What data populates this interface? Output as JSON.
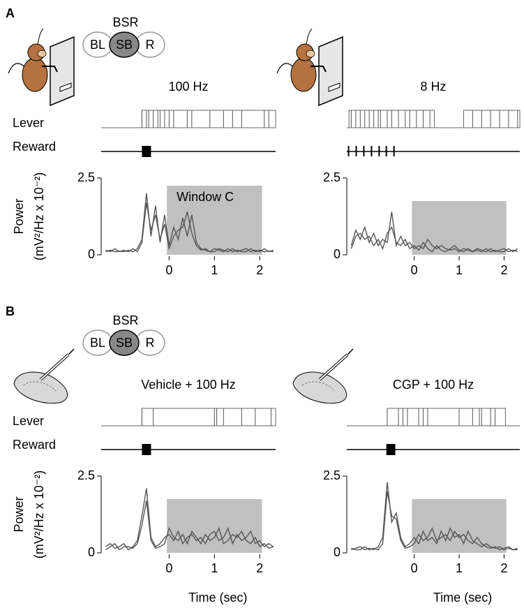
{
  "figure": {
    "panels": [
      {
        "label": "A",
        "bsr": "BSR",
        "schedule": [
          "BL",
          "SB",
          "R"
        ]
      },
      {
        "label": "B",
        "bsr": "BSR",
        "schedule": [
          "BL",
          "SB",
          "R"
        ]
      }
    ]
  },
  "chart_data": [
    {
      "type": "line",
      "title": "100 Hz",
      "lever_label": "Lever",
      "reward_label": "Reward",
      "ylabel": [
        "Power",
        "(mV²/Hz x 10⁻²)"
      ],
      "xlim": [
        -1.5,
        2.35
      ],
      "xticks": [
        0,
        1,
        2
      ],
      "ylim": [
        0,
        2.5
      ],
      "yticks": [
        0,
        2.5
      ],
      "lever": {
        "up": [
          [
            -0.6,
            2.35
          ]
        ],
        "presses": [
          -0.6,
          -0.5,
          -0.45,
          -0.35,
          -0.25,
          -0.2,
          -0.1,
          0.0,
          0.1,
          0.4,
          0.5,
          0.9,
          1.2,
          1.4,
          1.6,
          2.1,
          2.2
        ]
      },
      "reward_boxes": [
        [
          -0.6,
          -0.4
        ]
      ],
      "window": {
        "x": [
          -0.05,
          2.05
        ],
        "top": 2.25,
        "label": "Window C",
        "color": "#c0c0c0"
      },
      "x": [
        -1.4,
        -1.3,
        -1.2,
        -1.1,
        -1,
        -0.9,
        -0.8,
        -0.7,
        -0.6,
        -0.5,
        -0.4,
        -0.3,
        -0.2,
        -0.1,
        0,
        0.1,
        0.2,
        0.3,
        0.4,
        0.5,
        0.6,
        0.7,
        0.8,
        0.9,
        1,
        1.1,
        1.2,
        1.3,
        1.4,
        1.5,
        1.6,
        1.7,
        1.8,
        1.9,
        2,
        2.1,
        2.2,
        2.3
      ],
      "series": [
        {
          "color": "#555555",
          "values": [
            0.1,
            0.15,
            0.1,
            0.12,
            0.1,
            0.15,
            0.1,
            0.2,
            0.5,
            2.0,
            0.6,
            1.6,
            0.4,
            1.3,
            0.3,
            0.9,
            0.5,
            1.2,
            0.6,
            1.3,
            0.4,
            0.2,
            0.15,
            0.1,
            0.2,
            0.15,
            0.1,
            0.2,
            0.1,
            0.15,
            0.1,
            0.1,
            0.2,
            0.1,
            0.15,
            0.1,
            0.12,
            0.1
          ]
        },
        {
          "color": "#555555",
          "values": [
            0.15,
            0.1,
            0.2,
            0.1,
            0.15,
            0.1,
            0.2,
            0.1,
            0.4,
            1.7,
            0.8,
            1.3,
            0.5,
            1.0,
            0.2,
            0.6,
            0.8,
            0.9,
            1.4,
            0.7,
            0.3,
            0.15,
            0.2,
            0.1,
            0.1,
            0.2,
            0.15,
            0.1,
            0.2,
            0.1,
            0.15,
            0.2,
            0.1,
            0.15,
            0.1,
            0.2,
            0.1,
            0.15
          ]
        }
      ]
    },
    {
      "type": "line",
      "title": "8 Hz",
      "xlim": [
        -1.5,
        2.35
      ],
      "xticks": [
        0,
        1,
        2
      ],
      "ylim": [
        0,
        2.5
      ],
      "yticks": [
        0,
        2.5
      ],
      "lever": {
        "up": [
          [
            -1.45,
            0.45
          ],
          [
            1.1,
            2.35
          ]
        ],
        "presses": [
          -1.4,
          -1.3,
          -1.2,
          -1.1,
          -1.0,
          -0.9,
          -0.8,
          -0.75,
          -0.6,
          -0.5,
          -0.35,
          -0.2,
          -0.1,
          0.05,
          0.2,
          0.35,
          1.3,
          1.5,
          1.7,
          1.9,
          2.1,
          2.3
        ]
      },
      "reward_ticks": [
        -1.46,
        -1.29,
        -1.12,
        -0.95,
        -0.78,
        -0.62,
        -0.45
      ],
      "window": {
        "x": [
          -0.05,
          2.05
        ],
        "top": 1.75,
        "color": "#c0c0c0"
      },
      "x": [
        -1.4,
        -1.3,
        -1.2,
        -1.1,
        -1,
        -0.9,
        -0.8,
        -0.7,
        -0.6,
        -0.5,
        -0.4,
        -0.3,
        -0.2,
        -0.1,
        0,
        0.1,
        0.2,
        0.3,
        0.4,
        0.5,
        0.6,
        0.7,
        0.8,
        0.9,
        1,
        1.1,
        1.2,
        1.3,
        1.4,
        1.5,
        1.6,
        1.7,
        1.8,
        1.9,
        2,
        2.1,
        2.2,
        2.3
      ],
      "series": [
        {
          "color": "#555555",
          "values": [
            0.3,
            0.8,
            0.5,
            0.9,
            0.4,
            0.7,
            0.3,
            0.5,
            0.4,
            1.4,
            0.3,
            0.6,
            0.3,
            0.4,
            0.2,
            0.3,
            0.2,
            0.5,
            0.3,
            0.2,
            0.3,
            0.2,
            0.15,
            0.2,
            0.1,
            0.2,
            0.15,
            0.1,
            0.2,
            0.15,
            0.1,
            0.2,
            0.1,
            0.15,
            0.2,
            0.1,
            0.15,
            0.1
          ]
        },
        {
          "color": "#555555",
          "values": [
            0.2,
            0.6,
            0.7,
            0.5,
            0.6,
            0.3,
            0.5,
            0.2,
            0.7,
            0.9,
            0.4,
            0.3,
            0.5,
            0.2,
            0.3,
            0.15,
            0.4,
            0.2,
            0.1,
            0.3,
            0.15,
            0.1,
            0.2,
            0.3,
            0.15,
            0.1,
            0.2,
            0.1,
            0.15,
            0.1,
            0.2,
            0.1,
            0.15,
            0.1,
            0.1,
            0.2,
            0.1,
            0.2
          ]
        }
      ]
    },
    {
      "type": "line",
      "title": "Vehicle + 100 Hz",
      "lever_label": "Lever",
      "reward_label": "Reward",
      "ylabel": [
        "Power",
        "(mV²/Hz x 10⁻²)"
      ],
      "xlabel": "Time (sec)",
      "xlim": [
        -1.5,
        2.35
      ],
      "xticks": [
        0,
        1,
        2
      ],
      "ylim": [
        0,
        2.5
      ],
      "yticks": [
        0,
        2.5
      ],
      "lever": {
        "up": [
          [
            -0.6,
            2.35
          ]
        ],
        "presses": [
          -0.6,
          -0.35,
          1.0,
          1.05,
          1.2,
          1.6,
          1.9,
          2.25
        ]
      },
      "reward_boxes": [
        [
          -0.6,
          -0.4
        ]
      ],
      "window": {
        "x": [
          -0.05,
          2.05
        ],
        "top": 1.75,
        "color": "#c0c0c0"
      },
      "x": [
        -1.4,
        -1.3,
        -1.2,
        -1.1,
        -1,
        -0.9,
        -0.8,
        -0.7,
        -0.6,
        -0.5,
        -0.4,
        -0.3,
        -0.2,
        -0.1,
        0,
        0.1,
        0.2,
        0.3,
        0.4,
        0.5,
        0.6,
        0.7,
        0.8,
        0.9,
        1,
        1.1,
        1.2,
        1.3,
        1.4,
        1.5,
        1.6,
        1.7,
        1.8,
        1.9,
        2,
        2.1,
        2.2,
        2.3
      ],
      "series": [
        {
          "color": "#555555",
          "values": [
            0.2,
            0.3,
            0.15,
            0.2,
            0.3,
            0.1,
            0.2,
            0.4,
            1.2,
            2.1,
            0.5,
            0.2,
            0.3,
            0.5,
            0.6,
            0.4,
            0.7,
            0.3,
            0.5,
            0.6,
            0.4,
            0.5,
            0.3,
            0.6,
            0.7,
            0.4,
            0.5,
            0.8,
            0.3,
            0.6,
            0.4,
            0.5,
            0.7,
            0.3,
            0.4,
            0.2,
            0.3,
            0.2
          ]
        },
        {
          "color": "#555555",
          "values": [
            0.1,
            0.2,
            0.3,
            0.1,
            0.2,
            0.2,
            0.15,
            0.3,
            0.9,
            1.7,
            0.4,
            0.15,
            0.2,
            0.3,
            0.8,
            0.5,
            0.4,
            0.6,
            0.3,
            0.7,
            0.5,
            0.3,
            0.6,
            0.4,
            0.5,
            0.8,
            0.3,
            0.4,
            0.6,
            0.5,
            0.7,
            0.4,
            0.3,
            0.5,
            0.2,
            0.3,
            0.15,
            0.2
          ]
        }
      ]
    },
    {
      "type": "line",
      "title": "CGP + 100 Hz",
      "xlabel": "Time (sec)",
      "xlim": [
        -1.5,
        2.35
      ],
      "xticks": [
        0,
        1,
        2
      ],
      "ylim": [
        0,
        2.5
      ],
      "yticks": [
        0,
        2.5
      ],
      "lever": {
        "up": [
          [
            -0.6,
            2.03
          ]
        ],
        "presses": [
          -0.6,
          -0.35,
          -0.25,
          -0.15,
          0.1,
          0.2,
          0.3,
          1.0,
          1.3,
          1.45,
          1.5,
          1.7,
          1.8
        ]
      },
      "reward_boxes": [
        [
          -0.62,
          -0.42
        ]
      ],
      "window": {
        "x": [
          -0.05,
          2.05
        ],
        "top": 1.75,
        "color": "#c0c0c0"
      },
      "x": [
        -1.4,
        -1.3,
        -1.2,
        -1.1,
        -1,
        -0.9,
        -0.8,
        -0.7,
        -0.6,
        -0.5,
        -0.4,
        -0.3,
        -0.2,
        -0.1,
        0,
        0.1,
        0.2,
        0.3,
        0.4,
        0.5,
        0.6,
        0.7,
        0.8,
        0.9,
        1,
        1.1,
        1.2,
        1.3,
        1.4,
        1.5,
        1.6,
        1.7,
        1.8,
        1.9,
        2,
        2.1,
        2.2,
        2.3
      ],
      "series": [
        {
          "color": "#555555",
          "values": [
            0.1,
            0.15,
            0.2,
            0.1,
            0.15,
            0.1,
            0.2,
            0.5,
            2.3,
            1.0,
            1.3,
            0.5,
            0.2,
            0.3,
            0.5,
            0.3,
            0.7,
            0.4,
            0.5,
            0.3,
            0.7,
            0.4,
            0.8,
            0.5,
            0.6,
            0.3,
            0.7,
            0.4,
            0.3,
            0.2,
            0.3,
            0.2,
            0.15,
            0.2,
            0.1,
            0.15,
            0.1,
            0.15
          ]
        },
        {
          "color": "#555555",
          "values": [
            0.15,
            0.1,
            0.1,
            0.2,
            0.1,
            0.15,
            0.1,
            0.3,
            2.0,
            1.2,
            1.1,
            0.4,
            0.15,
            0.2,
            0.3,
            0.6,
            0.4,
            0.5,
            0.8,
            0.4,
            0.5,
            0.6,
            0.4,
            0.7,
            0.5,
            0.6,
            0.4,
            0.3,
            0.5,
            0.3,
            0.2,
            0.15,
            0.2,
            0.1,
            0.15,
            0.2,
            0.1,
            0.1
          ]
        }
      ]
    }
  ]
}
